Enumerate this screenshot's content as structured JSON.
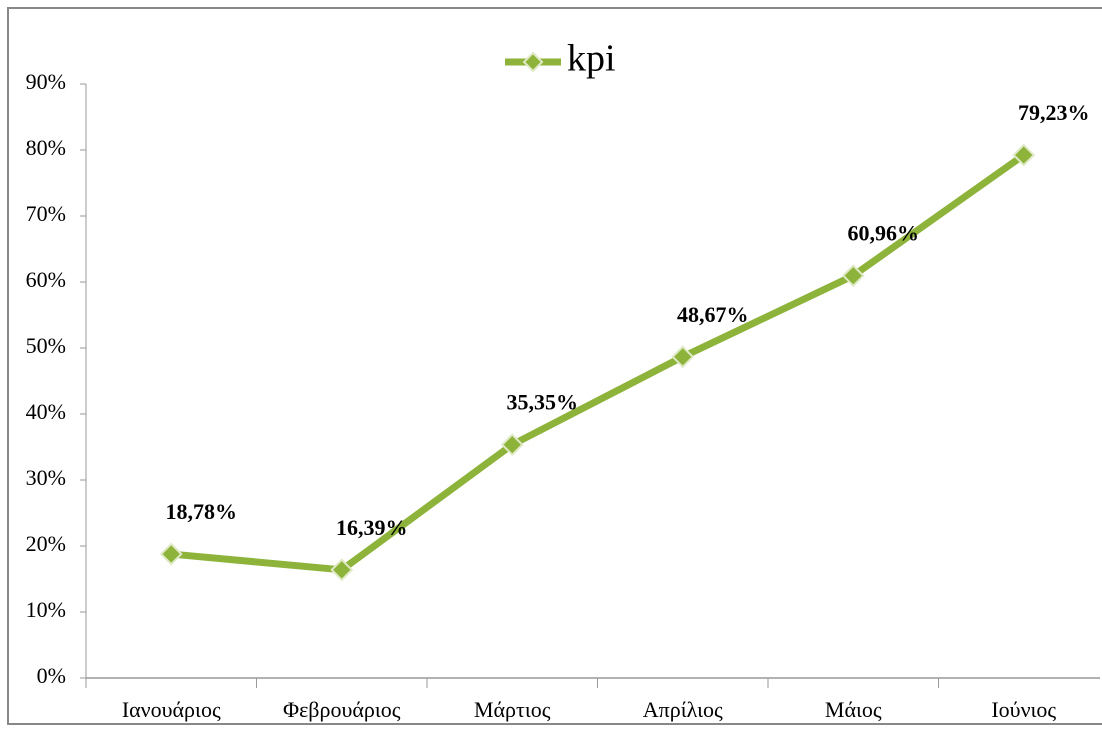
{
  "chart_data": {
    "type": "line",
    "categories": [
      "Ιανουάριος",
      "Φεβρουάριος",
      "Μάρτιος",
      "Απρίλιος",
      "Μάιος",
      "Ιούνιος"
    ],
    "series": [
      {
        "name": "kpi",
        "color": "#8db33a",
        "values": [
          18.78,
          16.39,
          35.35,
          48.67,
          60.96,
          79.23
        ],
        "value_labels": [
          "18,78%",
          "16,39%",
          "35,35%",
          "48,67%",
          "60,96%",
          "79,23%"
        ]
      }
    ],
    "ylim": [
      0,
      90
    ],
    "yticks": [
      {
        "value": 0,
        "label": "0%"
      },
      {
        "value": 10,
        "label": "10%"
      },
      {
        "value": 20,
        "label": "20%"
      },
      {
        "value": 30,
        "label": "30%"
      },
      {
        "value": 40,
        "label": "40%"
      },
      {
        "value": 50,
        "label": "50%"
      },
      {
        "value": 60,
        "label": "60%"
      },
      {
        "value": 70,
        "label": "70%"
      },
      {
        "value": 80,
        "label": "80%"
      },
      {
        "value": 90,
        "label": "90%"
      }
    ],
    "legend": "top",
    "grid": false
  }
}
